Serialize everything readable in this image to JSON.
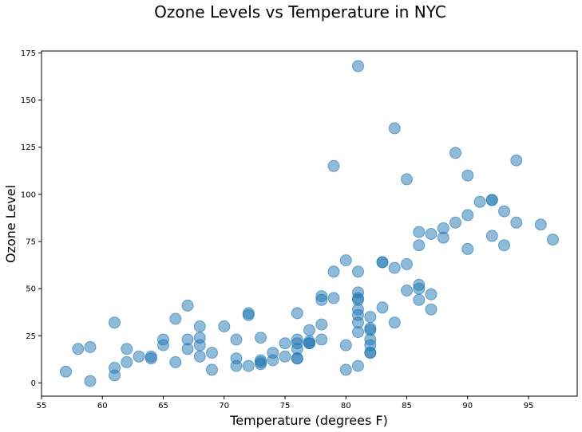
{
  "chart_data": {
    "type": "scatter",
    "title": "Ozone Levels vs Temperature in NYC",
    "xlabel": "Temperature (degrees F)",
    "ylabel": "Ozone Level",
    "xlim": [
      55,
      99
    ],
    "ylim": [
      -7,
      176
    ],
    "xticks": [
      55,
      60,
      65,
      70,
      75,
      80,
      85,
      90,
      95
    ],
    "yticks": [
      0,
      25,
      50,
      75,
      100,
      125,
      150,
      175
    ],
    "grid": false,
    "color": "#1f77b4",
    "points": [
      [
        57,
        6
      ],
      [
        58,
        18
      ],
      [
        59,
        19
      ],
      [
        59,
        1
      ],
      [
        61,
        32
      ],
      [
        61,
        8
      ],
      [
        61,
        4
      ],
      [
        62,
        18
      ],
      [
        62,
        11
      ],
      [
        63,
        14
      ],
      [
        64,
        14
      ],
      [
        64,
        13
      ],
      [
        65,
        23
      ],
      [
        65,
        20
      ],
      [
        66,
        34
      ],
      [
        66,
        11
      ],
      [
        67,
        41
      ],
      [
        67,
        23
      ],
      [
        67,
        18
      ],
      [
        68,
        30
      ],
      [
        68,
        24
      ],
      [
        68,
        20
      ],
      [
        68,
        14
      ],
      [
        69,
        16
      ],
      [
        69,
        7
      ],
      [
        70,
        30
      ],
      [
        71,
        23
      ],
      [
        71,
        13
      ],
      [
        71,
        9
      ],
      [
        72,
        37
      ],
      [
        72,
        36
      ],
      [
        72,
        9
      ],
      [
        73,
        24
      ],
      [
        73,
        12
      ],
      [
        73,
        11
      ],
      [
        73,
        10
      ],
      [
        74,
        16
      ],
      [
        74,
        12
      ],
      [
        75,
        21
      ],
      [
        75,
        14
      ],
      [
        76,
        37
      ],
      [
        76,
        23
      ],
      [
        76,
        21
      ],
      [
        76,
        18
      ],
      [
        76,
        13
      ],
      [
        76,
        13
      ],
      [
        77,
        28
      ],
      [
        77,
        22
      ],
      [
        77,
        21
      ],
      [
        77,
        21
      ],
      [
        78,
        46
      ],
      [
        78,
        44
      ],
      [
        78,
        31
      ],
      [
        78,
        23
      ],
      [
        79,
        115
      ],
      [
        79,
        59
      ],
      [
        79,
        45
      ],
      [
        80,
        65
      ],
      [
        80,
        20
      ],
      [
        80,
        7
      ],
      [
        81,
        168
      ],
      [
        81,
        59
      ],
      [
        81,
        48
      ],
      [
        81,
        45
      ],
      [
        81,
        44
      ],
      [
        81,
        39
      ],
      [
        81,
        36
      ],
      [
        81,
        32
      ],
      [
        81,
        27
      ],
      [
        81,
        9
      ],
      [
        82,
        35
      ],
      [
        82,
        29
      ],
      [
        82,
        28
      ],
      [
        82,
        23
      ],
      [
        82,
        20
      ],
      [
        82,
        16
      ],
      [
        82,
        16
      ],
      [
        83,
        64
      ],
      [
        83,
        64
      ],
      [
        83,
        40
      ],
      [
        84,
        135
      ],
      [
        84,
        61
      ],
      [
        84,
        32
      ],
      [
        85,
        108
      ],
      [
        85,
        63
      ],
      [
        85,
        49
      ],
      [
        86,
        80
      ],
      [
        86,
        73
      ],
      [
        86,
        52
      ],
      [
        86,
        50
      ],
      [
        86,
        44
      ],
      [
        87,
        79
      ],
      [
        87,
        47
      ],
      [
        87,
        39
      ],
      [
        88,
        82
      ],
      [
        88,
        77
      ],
      [
        89,
        122
      ],
      [
        89,
        85
      ],
      [
        90,
        110
      ],
      [
        90,
        89
      ],
      [
        90,
        71
      ],
      [
        91,
        96
      ],
      [
        92,
        97
      ],
      [
        92,
        97
      ],
      [
        92,
        78
      ],
      [
        93,
        91
      ],
      [
        93,
        73
      ],
      [
        94,
        118
      ],
      [
        94,
        85
      ],
      [
        96,
        84
      ],
      [
        97,
        76
      ]
    ]
  }
}
